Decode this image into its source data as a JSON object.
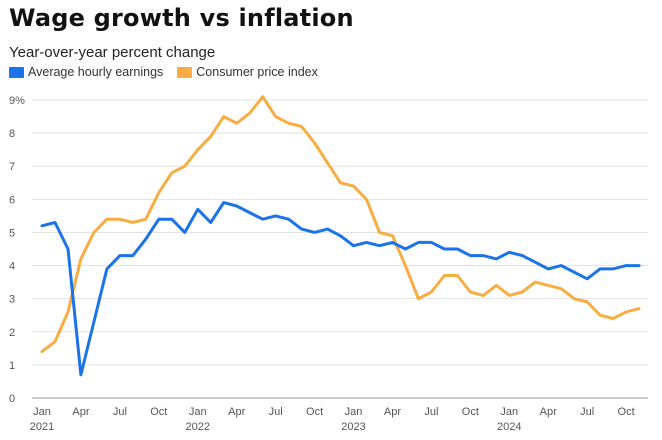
{
  "title": "Wage growth vs inflation",
  "subtitle": "Year-over-year percent change",
  "colors": {
    "wages": "#1a73e8",
    "cpi": "#f8ad42",
    "grid": "#e3e3e3",
    "axis": "#999999"
  },
  "chart_data": {
    "type": "line",
    "title": "Wage growth vs inflation",
    "subtitle": "Year-over-year percent change",
    "xlabel": "",
    "ylabel": "",
    "ylim": [
      0,
      9
    ],
    "y_ticks": [
      "0",
      "1",
      "2",
      "3",
      "4",
      "5",
      "6",
      "7",
      "8",
      "9%"
    ],
    "x_ticks": [
      {
        "label": "Jan",
        "year": "2021",
        "index": 0
      },
      {
        "label": "Apr",
        "year": "",
        "index": 3
      },
      {
        "label": "Jul",
        "year": "",
        "index": 6
      },
      {
        "label": "Oct",
        "year": "",
        "index": 9
      },
      {
        "label": "Jan",
        "year": "2022",
        "index": 12
      },
      {
        "label": "Apr",
        "year": "",
        "index": 15
      },
      {
        "label": "Jul",
        "year": "",
        "index": 18
      },
      {
        "label": "Oct",
        "year": "",
        "index": 21
      },
      {
        "label": "Jan",
        "year": "2023",
        "index": 24
      },
      {
        "label": "Apr",
        "year": "",
        "index": 27
      },
      {
        "label": "Jul",
        "year": "",
        "index": 30
      },
      {
        "label": "Oct",
        "year": "",
        "index": 33
      },
      {
        "label": "Jan",
        "year": "2024",
        "index": 36
      },
      {
        "label": "Apr",
        "year": "",
        "index": 39
      },
      {
        "label": "Jul",
        "year": "",
        "index": 42
      },
      {
        "label": "Oct",
        "year": "",
        "index": 45
      }
    ],
    "grid": true,
    "legend_position": "top-left",
    "series": [
      {
        "name": "Average hourly earnings",
        "color": "#1a73e8",
        "values": [
          5.2,
          5.3,
          4.5,
          0.7,
          2.3,
          3.9,
          4.3,
          4.3,
          4.8,
          5.4,
          5.4,
          5.0,
          5.7,
          5.3,
          5.9,
          5.8,
          5.6,
          5.4,
          5.5,
          5.4,
          5.1,
          5.0,
          5.1,
          4.9,
          4.6,
          4.7,
          4.6,
          4.7,
          4.5,
          4.7,
          4.7,
          4.5,
          4.5,
          4.3,
          4.3,
          4.2,
          4.4,
          4.3,
          4.1,
          3.9,
          4.0,
          3.8,
          3.6,
          3.9,
          3.9,
          4.0,
          4.0
        ]
      },
      {
        "name": "Consumer price index",
        "color": "#f8ad42",
        "values": [
          1.4,
          1.7,
          2.6,
          4.2,
          5.0,
          5.4,
          5.4,
          5.3,
          5.4,
          6.2,
          6.8,
          7.0,
          7.5,
          7.9,
          8.5,
          8.3,
          8.6,
          9.1,
          8.5,
          8.3,
          8.2,
          7.7,
          7.1,
          6.5,
          6.4,
          6.0,
          5.0,
          4.9,
          4.0,
          3.0,
          3.2,
          3.7,
          3.7,
          3.2,
          3.1,
          3.4,
          3.1,
          3.2,
          3.5,
          3.4,
          3.3,
          3.0,
          2.9,
          2.5,
          2.4,
          2.6,
          2.7
        ]
      }
    ]
  }
}
